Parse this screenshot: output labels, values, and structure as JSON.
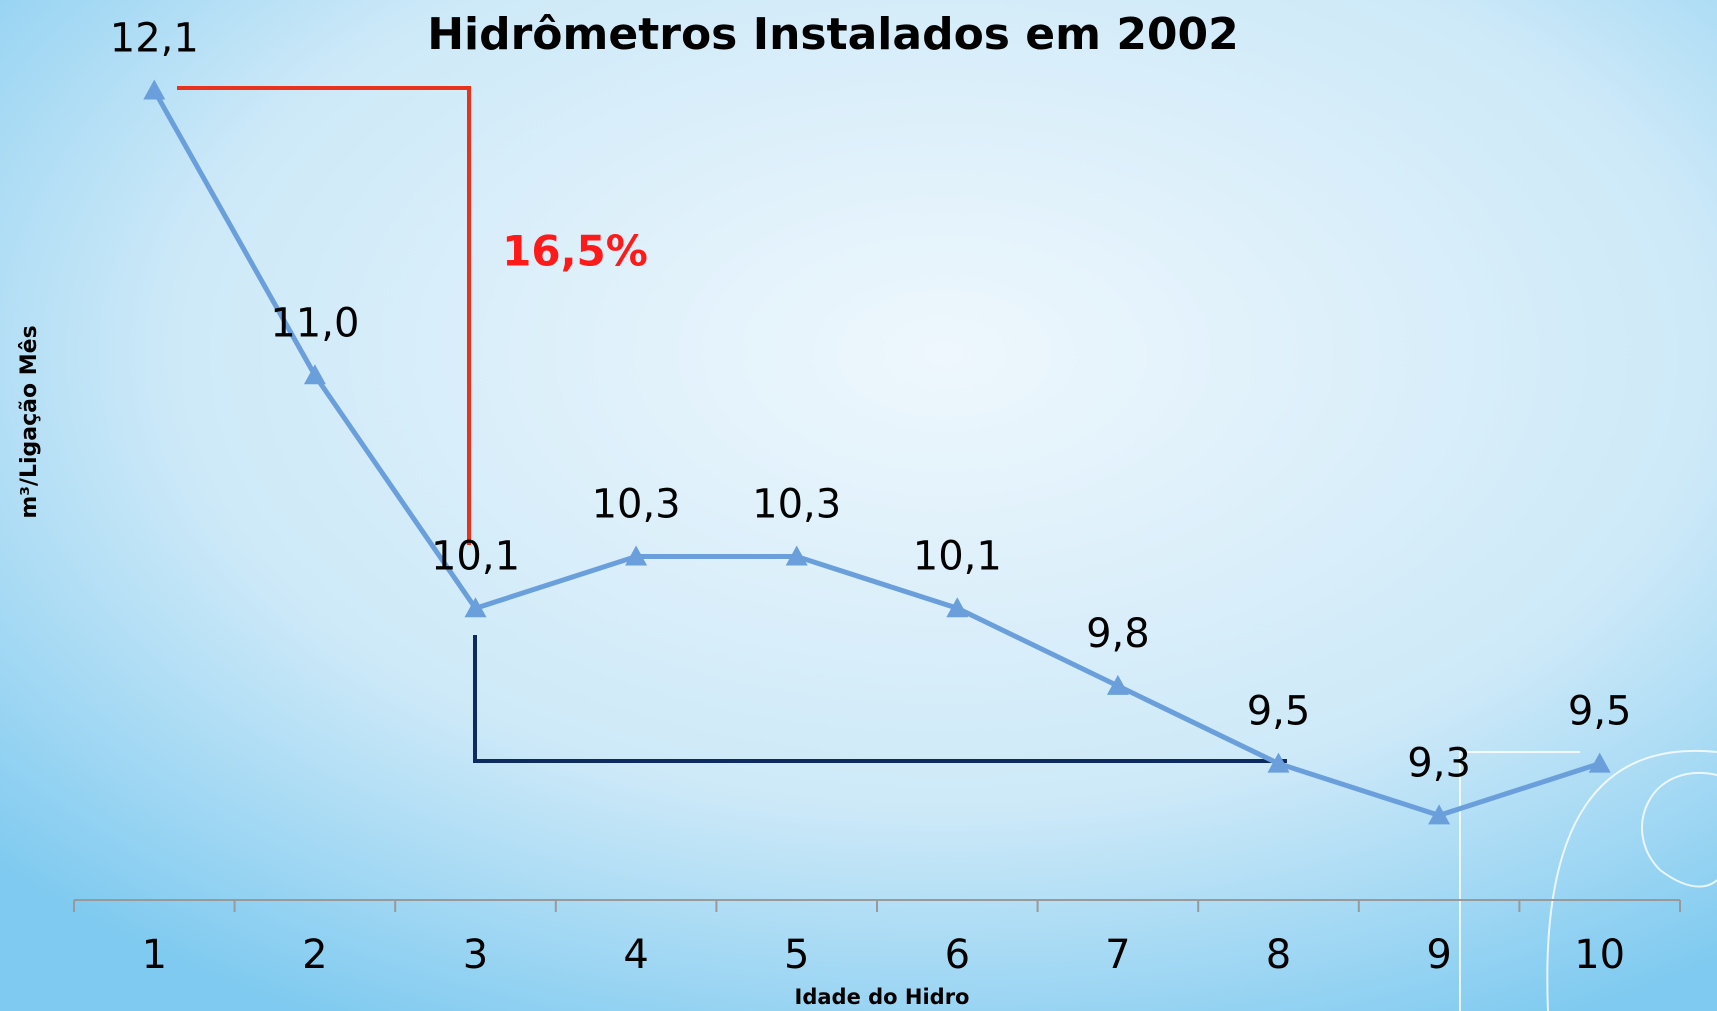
{
  "chart_data": {
    "type": "line",
    "title": "Hidrômetros Instalados em 2002",
    "x_label": "Idade do Hidro",
    "y_label": "m³/Ligação Mês",
    "categories": [
      "1",
      "2",
      "3",
      "4",
      "5",
      "6",
      "7",
      "8",
      "9",
      "10"
    ],
    "series": [
      {
        "name": "m³/Ligação Mês",
        "color": "#6a9fdc",
        "values": [
          12.1,
          11.0,
          10.1,
          10.3,
          10.3,
          10.1,
          9.8,
          9.5,
          9.3,
          9.5
        ],
        "value_labels": [
          "12,1",
          "11,0",
          "10,1",
          "10,3",
          "10,3",
          "10,1",
          "9,8",
          "9,5",
          "9,3",
          "9,5"
        ]
      }
    ],
    "ylim": [
      9,
      12.5
    ],
    "annotations": [
      "16,5%"
    ]
  }
}
